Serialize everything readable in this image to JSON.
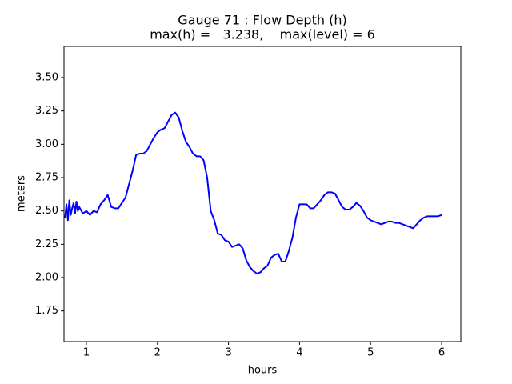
{
  "chart_data": {
    "type": "line",
    "title": [
      "Gauge 71 : Flow Depth (h)",
      "max(h) =   3.238,    max(level) = 6"
    ],
    "x_label": "hours",
    "y_label": "meters",
    "x": [
      0.7,
      0.72,
      0.74,
      0.76,
      0.78,
      0.8,
      0.82,
      0.84,
      0.86,
      0.88,
      0.9,
      0.95,
      1.0,
      1.05,
      1.1,
      1.15,
      1.2,
      1.25,
      1.3,
      1.35,
      1.4,
      1.45,
      1.5,
      1.55,
      1.6,
      1.65,
      1.7,
      1.75,
      1.8,
      1.85,
      1.9,
      1.95,
      2.0,
      2.05,
      2.1,
      2.15,
      2.2,
      2.25,
      2.3,
      2.35,
      2.4,
      2.45,
      2.5,
      2.55,
      2.6,
      2.65,
      2.7,
      2.75,
      2.8,
      2.85,
      2.9,
      2.95,
      3.0,
      3.05,
      3.1,
      3.15,
      3.2,
      3.25,
      3.3,
      3.35,
      3.4,
      3.45,
      3.5,
      3.55,
      3.6,
      3.65,
      3.7,
      3.75,
      3.8,
      3.85,
      3.9,
      3.95,
      4.0,
      4.05,
      4.1,
      4.15,
      4.2,
      4.25,
      4.3,
      4.35,
      4.4,
      4.45,
      4.5,
      4.55,
      4.6,
      4.65,
      4.7,
      4.75,
      4.8,
      4.85,
      4.9,
      4.95,
      5.0,
      5.05,
      5.1,
      5.15,
      5.2,
      5.25,
      5.3,
      5.35,
      5.4,
      5.45,
      5.5,
      5.55,
      5.6,
      5.65,
      5.7,
      5.75,
      5.8,
      5.85,
      5.9,
      5.95,
      6.0
    ],
    "series": [
      {
        "name": "h",
        "color": "#0000ff",
        "values": [
          2.45,
          2.55,
          2.43,
          2.58,
          2.47,
          2.52,
          2.56,
          2.48,
          2.57,
          2.5,
          2.53,
          2.48,
          2.5,
          2.47,
          2.5,
          2.49,
          2.55,
          2.58,
          2.62,
          2.53,
          2.52,
          2.52,
          2.56,
          2.6,
          2.7,
          2.8,
          2.92,
          2.93,
          2.93,
          2.95,
          3.0,
          3.05,
          3.09,
          3.11,
          3.12,
          3.17,
          3.22,
          3.238,
          3.2,
          3.1,
          3.02,
          2.98,
          2.93,
          2.91,
          2.91,
          2.88,
          2.75,
          2.5,
          2.43,
          2.33,
          2.32,
          2.28,
          2.27,
          2.23,
          2.24,
          2.25,
          2.22,
          2.13,
          2.08,
          2.05,
          2.03,
          2.04,
          2.07,
          2.09,
          2.15,
          2.17,
          2.18,
          2.12,
          2.12,
          2.2,
          2.3,
          2.45,
          2.55,
          2.55,
          2.55,
          2.52,
          2.52,
          2.55,
          2.58,
          2.62,
          2.64,
          2.64,
          2.63,
          2.58,
          2.53,
          2.51,
          2.51,
          2.53,
          2.56,
          2.54,
          2.5,
          2.45,
          2.43,
          2.42,
          2.41,
          2.4,
          2.41,
          2.42,
          2.42,
          2.41,
          2.41,
          2.4,
          2.39,
          2.38,
          2.37,
          2.4,
          2.43,
          2.45,
          2.46,
          2.46,
          2.46,
          2.46,
          2.47
        ]
      }
    ],
    "xlim": [
      0.685,
      6.27
    ],
    "ylim": [
      1.52,
      3.734
    ],
    "xticks": [
      1,
      2,
      3,
      4,
      5,
      6
    ],
    "yticks": [
      1.75,
      {
        "value": 2.0,
        "label": "2.00"
      },
      2.25,
      {
        "value": 2.5,
        "label": "2.50"
      },
      2.75,
      {
        "value": 3.0,
        "label": "3.00"
      },
      3.25,
      {
        "value": 3.5,
        "label": "3.50"
      }
    ],
    "grid": false
  }
}
